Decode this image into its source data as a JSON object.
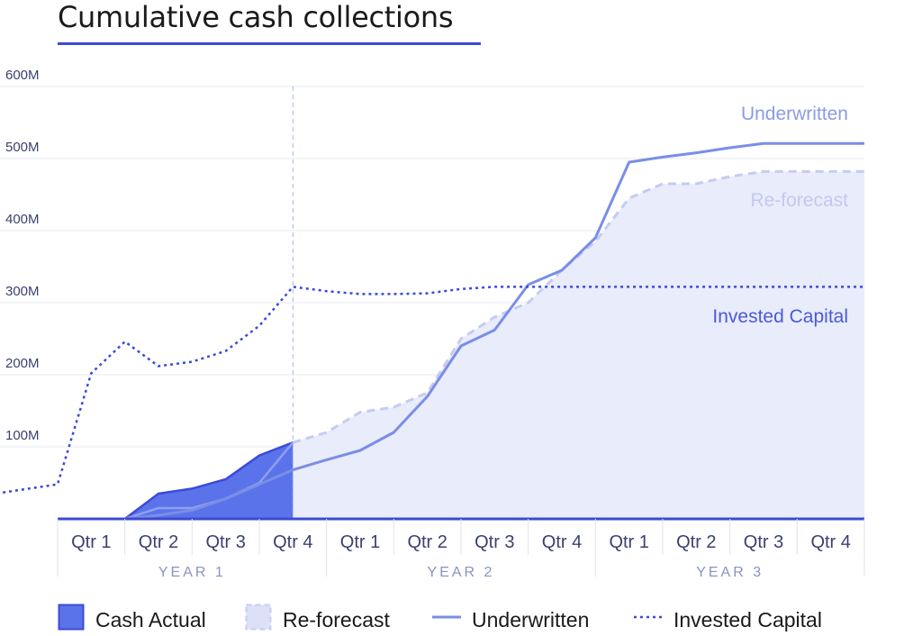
{
  "title": "Cumulative cash collections",
  "chart_data": {
    "type": "area",
    "ylim": [
      0,
      600
    ],
    "y_ticks": [
      {
        "value": 100,
        "label": "100M"
      },
      {
        "value": 200,
        "label": "200M"
      },
      {
        "value": 300,
        "label": "300M"
      },
      {
        "value": 400,
        "label": "400M"
      },
      {
        "value": 500,
        "label": "500M"
      },
      {
        "value": 600,
        "label": "600M"
      }
    ],
    "quarters": [
      "Qtr 1",
      "Qtr 2",
      "Qtr 3",
      "Qtr 4",
      "Qtr 1",
      "Qtr 2",
      "Qtr 3",
      "Qtr 4",
      "Qtr 1",
      "Qtr 2",
      "Qtr 3",
      "Qtr 4"
    ],
    "years": [
      "YEAR 1",
      "YEAR 2",
      "YEAR 3"
    ],
    "x_range": [
      0,
      12
    ],
    "actual_end": 3.5,
    "series": [
      {
        "name": "Cash Actual",
        "style": "area-solid",
        "color": "#5b73ea",
        "points": [
          [
            0,
            0
          ],
          [
            1,
            0
          ],
          [
            1.5,
            35
          ],
          [
            2,
            42
          ],
          [
            2.5,
            55
          ],
          [
            3,
            88
          ],
          [
            3.5,
            106
          ]
        ]
      },
      {
        "name": "Re-forecast",
        "style": "area-dashed",
        "color": "#cdd3f4",
        "line_color": "#c5ccf0",
        "points": [
          [
            0,
            0
          ],
          [
            1,
            0
          ],
          [
            1.5,
            15
          ],
          [
            2,
            15
          ],
          [
            2.5,
            28
          ],
          [
            3,
            50
          ],
          [
            3.5,
            106
          ],
          [
            4,
            120
          ],
          [
            4.5,
            148
          ],
          [
            5,
            155
          ],
          [
            5.5,
            175
          ],
          [
            6,
            250
          ],
          [
            6.5,
            280
          ],
          [
            7,
            300
          ],
          [
            7.5,
            345
          ],
          [
            8,
            385
          ],
          [
            8.5,
            445
          ],
          [
            9,
            465
          ],
          [
            9.5,
            465
          ],
          [
            10,
            475
          ],
          [
            10.5,
            482
          ],
          [
            11,
            482
          ],
          [
            12,
            482
          ]
        ]
      },
      {
        "name": "Underwritten",
        "style": "line-solid",
        "color": "#7a8ee6",
        "label": "Underwritten",
        "points": [
          [
            0,
            0
          ],
          [
            1,
            0
          ],
          [
            1.5,
            5
          ],
          [
            2,
            12
          ],
          [
            2.5,
            28
          ],
          [
            3,
            48
          ],
          [
            3.5,
            68
          ],
          [
            4,
            82
          ],
          [
            4.5,
            95
          ],
          [
            5,
            120
          ],
          [
            5.5,
            170
          ],
          [
            6,
            240
          ],
          [
            6.5,
            262
          ],
          [
            7,
            325
          ],
          [
            7.5,
            345
          ],
          [
            8,
            390
          ],
          [
            8.5,
            495
          ],
          [
            9,
            502
          ],
          [
            9.5,
            508
          ],
          [
            10,
            515
          ],
          [
            10.5,
            521
          ],
          [
            11,
            521
          ],
          [
            12,
            521
          ]
        ]
      },
      {
        "name": "Invested Capital",
        "style": "line-dotted",
        "color": "#3b4bd6",
        "label": "Invested Capital",
        "points": [
          [
            -1,
            34
          ],
          [
            0,
            48
          ],
          [
            0.5,
            202
          ],
          [
            1,
            246
          ],
          [
            1.5,
            212
          ],
          [
            2,
            218
          ],
          [
            2.5,
            233
          ],
          [
            3,
            268
          ],
          [
            3.5,
            322
          ],
          [
            4,
            316
          ],
          [
            4.5,
            312
          ],
          [
            5,
            312
          ],
          [
            5.5,
            313
          ],
          [
            6,
            319
          ],
          [
            6.5,
            322
          ],
          [
            7,
            322
          ],
          [
            12,
            322
          ]
        ]
      }
    ],
    "line_labels": [
      {
        "series": "Underwritten",
        "text": "Underwritten",
        "color": "#8a9ce6"
      },
      {
        "series": "Re-forecast",
        "text": "Re-forecast",
        "color": "#c2c9ef"
      },
      {
        "series": "Invested Capital",
        "text": "Invested Capital",
        "color": "#4a5ad8"
      }
    ]
  },
  "legend": [
    {
      "label": "Cash Actual",
      "style": "area-solid"
    },
    {
      "label": "Re-forecast",
      "style": "area-dashed"
    },
    {
      "label": "Underwritten",
      "style": "line-solid"
    },
    {
      "label": "Invested Capital",
      "style": "line-dotted"
    }
  ]
}
